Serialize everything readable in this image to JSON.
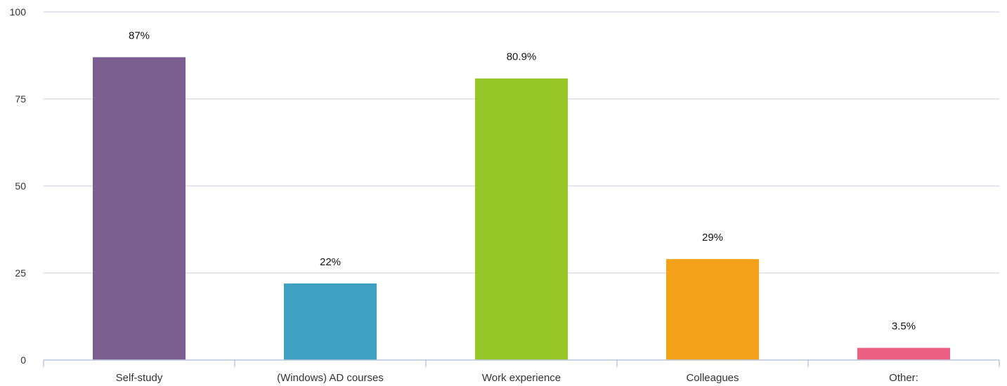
{
  "chart_data": {
    "type": "bar",
    "categories": [
      "Self-study",
      "(Windows) AD courses",
      "Work experience",
      "Colleagues",
      "Other:"
    ],
    "values": [
      87,
      22,
      80.9,
      29,
      3.5
    ],
    "data_labels": [
      "87%",
      "22%",
      "80.9%",
      "29%",
      "3.5%"
    ],
    "colors": [
      "#7b5f91",
      "#40a0c1",
      "#96c627",
      "#f4a21a",
      "#ee5f86"
    ],
    "ylim": [
      0,
      100
    ],
    "yticks": [
      0,
      25,
      50,
      75,
      100
    ],
    "ytick_labels": [
      "0",
      "25",
      "50",
      "75",
      "100"
    ],
    "grid": true,
    "title": "",
    "xlabel": "",
    "ylabel": ""
  }
}
